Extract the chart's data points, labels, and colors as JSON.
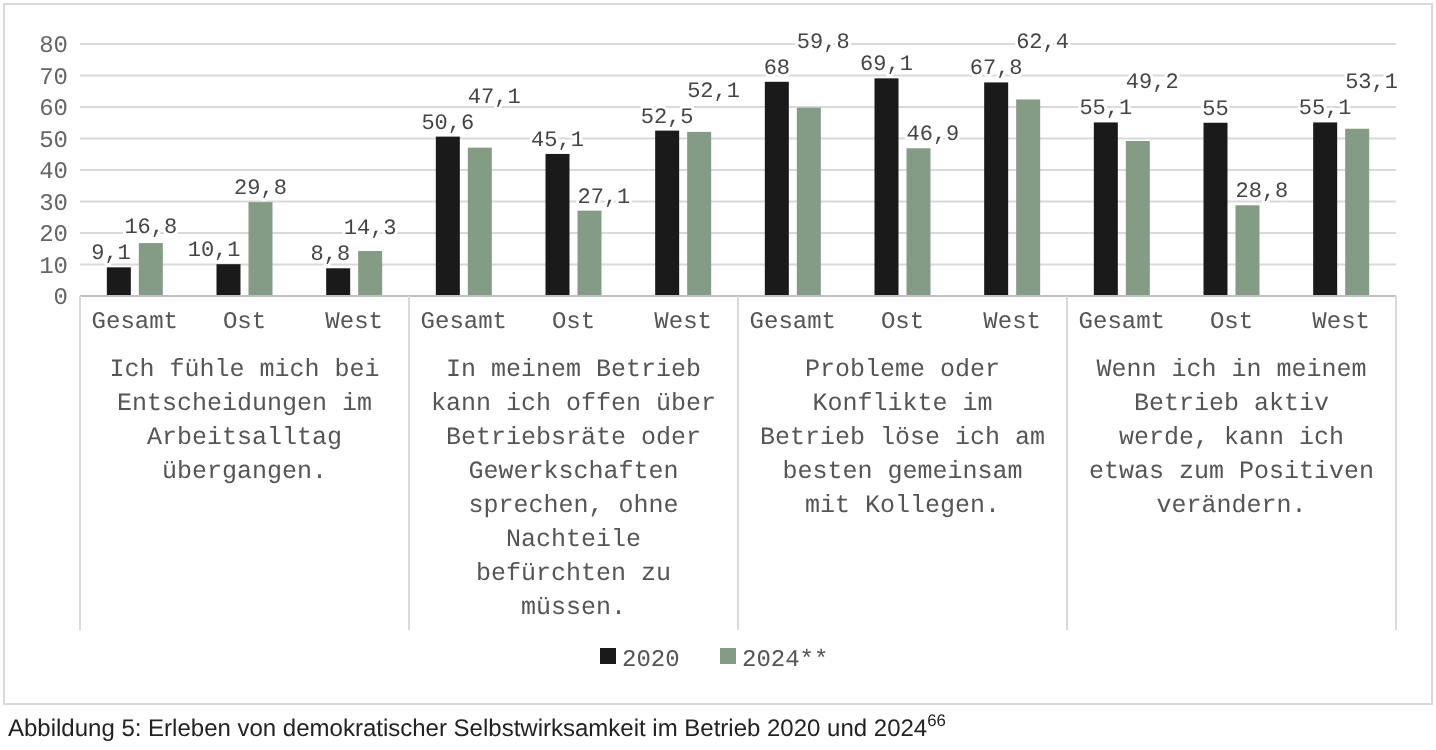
{
  "chart_data": {
    "type": "bar",
    "categories": [
      "Gesamt",
      "Ost",
      "West",
      "Gesamt",
      "Ost",
      "West",
      "Gesamt",
      "Ost",
      "West",
      "Gesamt",
      "Ost",
      "West"
    ],
    "series": [
      {
        "name": "2020",
        "color": "#1a1a1a",
        "values": [
          9.1,
          10.1,
          8.8,
          50.6,
          45.1,
          52.5,
          68,
          69.1,
          67.8,
          55.1,
          55,
          55.1
        ],
        "value_labels": [
          "9,1",
          "10,1",
          "8,8",
          "50,6",
          "45,1",
          "52,5",
          "68",
          "69,1",
          "67,8",
          "55,1",
          "55",
          "55,1"
        ]
      },
      {
        "name": "2024**",
        "color": "#849c85",
        "values": [
          16.8,
          29.8,
          14.3,
          47.1,
          27.1,
          52.1,
          59.8,
          46.9,
          62.4,
          49.2,
          28.8,
          53.1
        ],
        "value_labels": [
          "16,8",
          "29,8",
          "14,3",
          "47,1",
          "27,1",
          "52,1",
          "59,8",
          "46,9",
          "62,4",
          "49,2",
          "28,8",
          "53,1"
        ]
      }
    ],
    "annotations": [
      "Ich fühle mich bei Entscheidungen im Arbeitsalltag übergangen.",
      "In meinem Betrieb kann ich offen über Betriebsräte oder Gewerkschaften sprechen, ohne Nachteile befürchten zu müssen.",
      "Probleme oder Konflikte im Betrieb löse ich am besten gemeinsam mit Kollegen.",
      "Wenn ich in meinem Betrieb aktiv werde, kann ich etwas zum Positiven verändern.",
      "Abbildung 5: Erleben von demokratischer Selbstwirksamkeit im Betrieb 2020 und 2024$^{66}$"
    ],
    "ylim": [
      0,
      80
    ],
    "yticks": [
      0,
      10,
      20,
      30,
      40,
      50,
      60,
      70,
      80
    ],
    "grid": "y",
    "legend": "bottom"
  }
}
